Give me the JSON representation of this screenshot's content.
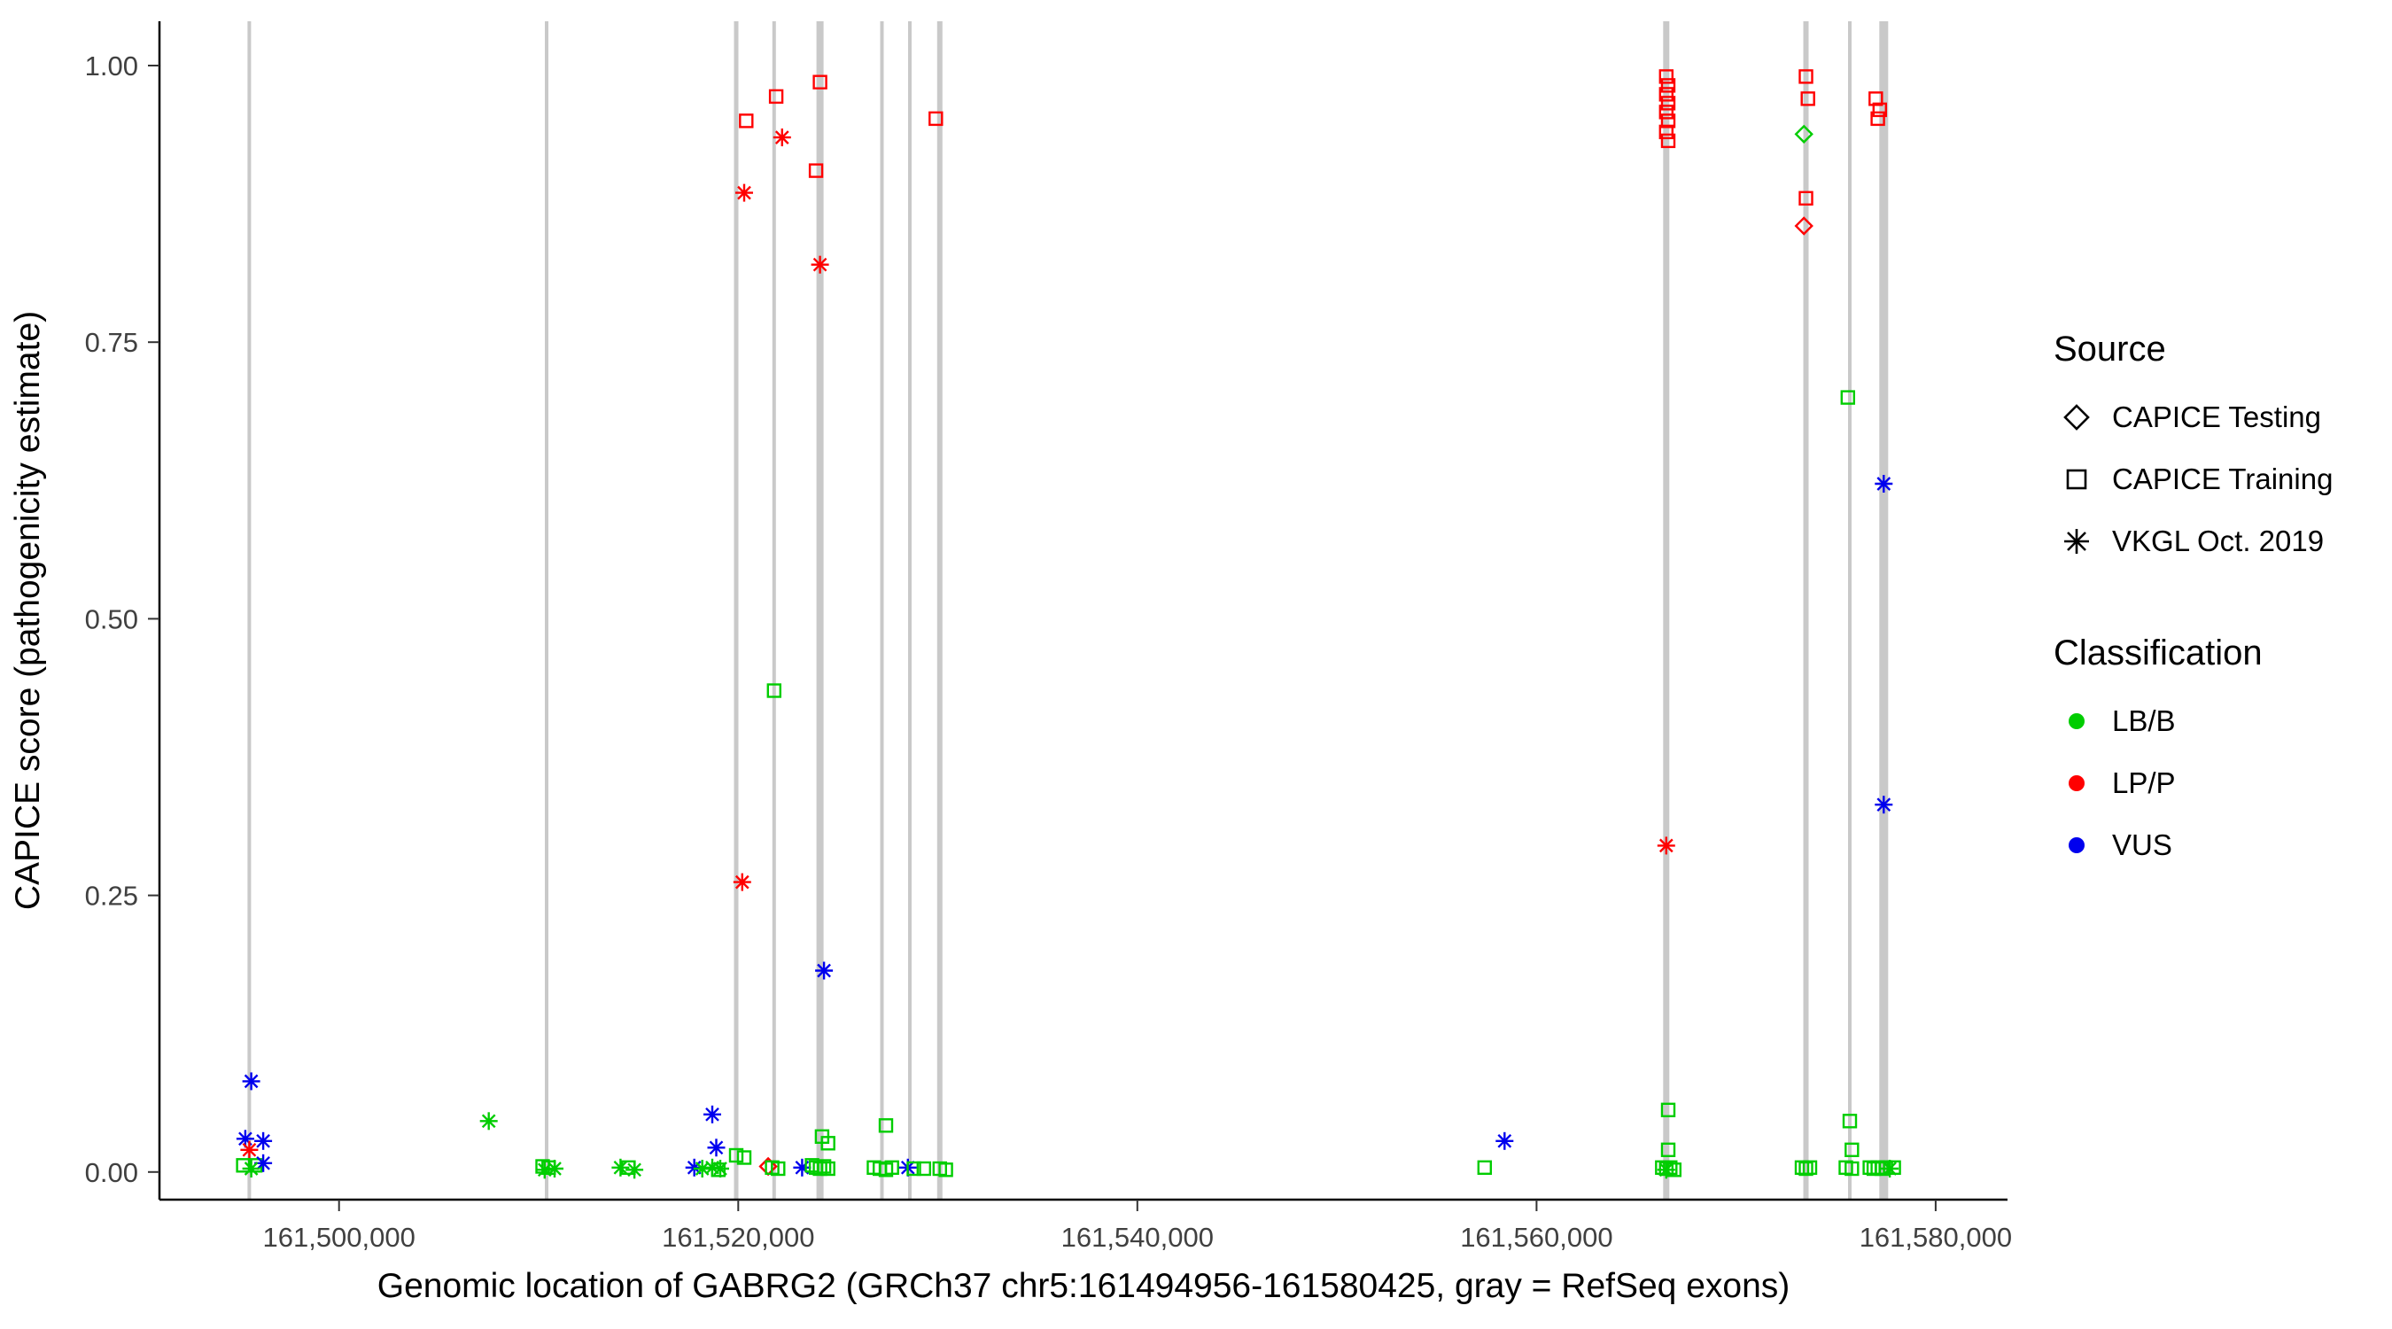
{
  "chart_data": {
    "type": "scatter",
    "title": "",
    "xlabel": "Genomic location of GABRG2 (GRCh37 chr5:161494956-161580425, gray = RefSeq exons)",
    "ylabel": "CAPICE score (pathogenicity estimate)",
    "xlim": [
      161491000,
      161583600
    ],
    "ylim": [
      -0.025,
      1.04
    ],
    "x_ticks": [
      {
        "value": 161500000,
        "label": "161,500,000"
      },
      {
        "value": 161520000,
        "label": "161,520,000"
      },
      {
        "value": 161540000,
        "label": "161,540,000"
      },
      {
        "value": 161560000,
        "label": "161,560,000"
      },
      {
        "value": 161580000,
        "label": "161,580,000"
      }
    ],
    "y_ticks": [
      {
        "value": 0.0,
        "label": "0.00"
      },
      {
        "value": 0.25,
        "label": "0.25"
      },
      {
        "value": 0.5,
        "label": "0.50"
      },
      {
        "value": 0.75,
        "label": "0.75"
      },
      {
        "value": 1.0,
        "label": "1.00"
      }
    ],
    "colors": {
      "LB/B": "#00CD00",
      "LP/P": "#FF0000",
      "VUS": "#0000EE",
      "exon": "#C9C9C9",
      "axis": "#000000"
    },
    "shapes": {
      "CAPICE Testing": "diamond",
      "CAPICE Training": "square",
      "VKGL Oct. 2019": "asterisk"
    },
    "legend": {
      "source": {
        "title": "Source",
        "items": [
          {
            "label": "CAPICE Testing",
            "shape": "diamond"
          },
          {
            "label": "CAPICE Training",
            "shape": "square"
          },
          {
            "label": "VKGL Oct. 2019",
            "shape": "asterisk"
          }
        ]
      },
      "classification": {
        "title": "Classification",
        "items": [
          {
            "label": "LB/B",
            "color": "#00CD00"
          },
          {
            "label": "LP/P",
            "color": "#FF0000"
          },
          {
            "label": "VUS",
            "color": "#0000EE"
          }
        ]
      }
    },
    "exons_note": "gray vertical lines = RefSeq exons",
    "exons": [
      {
        "x": 161495500,
        "w": 4
      },
      {
        "x": 161510400,
        "w": 4
      },
      {
        "x": 161519900,
        "w": 5
      },
      {
        "x": 161521800,
        "w": 4
      },
      {
        "x": 161524100,
        "w": 8
      },
      {
        "x": 161527200,
        "w": 4
      },
      {
        "x": 161528600,
        "w": 4
      },
      {
        "x": 161530100,
        "w": 6
      },
      {
        "x": 161566500,
        "w": 7
      },
      {
        "x": 161573500,
        "w": 6
      },
      {
        "x": 161575700,
        "w": 4
      },
      {
        "x": 161577400,
        "w": 10
      }
    ],
    "points_format": [
      "x_genomic_position",
      "capice_score",
      "source",
      "classification"
    ],
    "points": [
      [
        161495600,
        0.082,
        "VKGL Oct. 2019",
        "VUS"
      ],
      [
        161495300,
        0.03,
        "VKGL Oct. 2019",
        "VUS"
      ],
      [
        161496200,
        0.028,
        "VKGL Oct. 2019",
        "VUS"
      ],
      [
        161495500,
        0.02,
        "VKGL Oct. 2019",
        "LP/P"
      ],
      [
        161495200,
        0.006,
        "CAPICE Training",
        "LB/B"
      ],
      [
        161495800,
        0.006,
        "CAPICE Training",
        "LB/B"
      ],
      [
        161496200,
        0.008,
        "VKGL Oct. 2019",
        "VUS"
      ],
      [
        161495600,
        0.003,
        "VKGL Oct. 2019",
        "LB/B"
      ],
      [
        161507500,
        0.046,
        "VKGL Oct. 2019",
        "LB/B"
      ],
      [
        161510200,
        0.005,
        "CAPICE Training",
        "LB/B"
      ],
      [
        161510500,
        0.004,
        "CAPICE Training",
        "LB/B"
      ],
      [
        161510800,
        0.003,
        "VKGL Oct. 2019",
        "LB/B"
      ],
      [
        161510300,
        0.002,
        "VKGL Oct. 2019",
        "LB/B"
      ],
      [
        161514100,
        0.004,
        "VKGL Oct. 2019",
        "LB/B"
      ],
      [
        161514500,
        0.004,
        "CAPICE Training",
        "LB/B"
      ],
      [
        161514800,
        0.002,
        "VKGL Oct. 2019",
        "LB/B"
      ],
      [
        161518700,
        0.052,
        "VKGL Oct. 2019",
        "VUS"
      ],
      [
        161518900,
        0.022,
        "VKGL Oct. 2019",
        "VUS"
      ],
      [
        161517800,
        0.004,
        "VKGL Oct. 2019",
        "VUS"
      ],
      [
        161518200,
        0.003,
        "VKGL Oct. 2019",
        "LB/B"
      ],
      [
        161518700,
        0.004,
        "VKGL Oct. 2019",
        "LB/B"
      ],
      [
        161519100,
        0.003,
        "VKGL Oct. 2019",
        "LB/B"
      ],
      [
        161519000,
        0.002,
        "CAPICE Training",
        "LB/B"
      ],
      [
        161520400,
        0.95,
        "CAPICE Training",
        "LP/P"
      ],
      [
        161520300,
        0.885,
        "VKGL Oct. 2019",
        "LP/P"
      ],
      [
        161520200,
        0.262,
        "VKGL Oct. 2019",
        "LP/P"
      ],
      [
        161519900,
        0.015,
        "CAPICE Training",
        "LB/B"
      ],
      [
        161520300,
        0.013,
        "CAPICE Training",
        "LB/B"
      ],
      [
        161521900,
        0.972,
        "CAPICE Training",
        "LP/P"
      ],
      [
        161522200,
        0.935,
        "VKGL Oct. 2019",
        "LP/P"
      ],
      [
        161521800,
        0.435,
        "CAPICE Training",
        "LB/B"
      ],
      [
        161521500,
        0.005,
        "CAPICE Testing",
        "LP/P"
      ],
      [
        161521700,
        0.004,
        "CAPICE Training",
        "LB/B"
      ],
      [
        161522000,
        0.003,
        "CAPICE Training",
        "LB/B"
      ],
      [
        161524100,
        0.985,
        "CAPICE Training",
        "LP/P"
      ],
      [
        161523900,
        0.905,
        "CAPICE Training",
        "LP/P"
      ],
      [
        161524100,
        0.82,
        "VKGL Oct. 2019",
        "LP/P"
      ],
      [
        161524300,
        0.182,
        "VKGL Oct. 2019",
        "VUS"
      ],
      [
        161524200,
        0.032,
        "CAPICE Training",
        "LB/B"
      ],
      [
        161524500,
        0.026,
        "CAPICE Training",
        "LB/B"
      ],
      [
        161523200,
        0.004,
        "VKGL Oct. 2019",
        "VUS"
      ],
      [
        161523700,
        0.006,
        "CAPICE Training",
        "LB/B"
      ],
      [
        161523900,
        0.004,
        "CAPICE Training",
        "LB/B"
      ],
      [
        161524100,
        0.003,
        "CAPICE Training",
        "LB/B"
      ],
      [
        161524300,
        0.005,
        "CAPICE Training",
        "LB/B"
      ],
      [
        161524500,
        0.003,
        "CAPICE Training",
        "LB/B"
      ],
      [
        161527400,
        0.042,
        "CAPICE Training",
        "LB/B"
      ],
      [
        161526800,
        0.004,
        "CAPICE Training",
        "LB/B"
      ],
      [
        161527100,
        0.003,
        "CAPICE Training",
        "LB/B"
      ],
      [
        161527400,
        0.002,
        "CAPICE Training",
        "LB/B"
      ],
      [
        161527700,
        0.004,
        "CAPICE Training",
        "LB/B"
      ],
      [
        161528500,
        0.004,
        "VKGL Oct. 2019",
        "VUS"
      ],
      [
        161528800,
        0.003,
        "CAPICE Training",
        "LB/B"
      ],
      [
        161529300,
        0.003,
        "CAPICE Training",
        "LB/B"
      ],
      [
        161529900,
        0.952,
        "CAPICE Training",
        "LP/P"
      ],
      [
        161530100,
        0.003,
        "CAPICE Training",
        "LB/B"
      ],
      [
        161530400,
        0.002,
        "CAPICE Training",
        "LB/B"
      ],
      [
        161557400,
        0.004,
        "CAPICE Training",
        "LB/B"
      ],
      [
        161558400,
        0.028,
        "VKGL Oct. 2019",
        "VUS"
      ],
      [
        161566500,
        0.99,
        "CAPICE Training",
        "LP/P"
      ],
      [
        161566600,
        0.982,
        "CAPICE Training",
        "LP/P"
      ],
      [
        161566500,
        0.974,
        "CAPICE Training",
        "LP/P"
      ],
      [
        161566600,
        0.966,
        "CAPICE Training",
        "LP/P"
      ],
      [
        161566500,
        0.958,
        "CAPICE Training",
        "LP/P"
      ],
      [
        161566600,
        0.95,
        "CAPICE Training",
        "LP/P"
      ],
      [
        161566500,
        0.94,
        "CAPICE Training",
        "LP/P"
      ],
      [
        161566600,
        0.932,
        "CAPICE Training",
        "LP/P"
      ],
      [
        161566500,
        0.295,
        "VKGL Oct. 2019",
        "LP/P"
      ],
      [
        161566600,
        0.056,
        "CAPICE Training",
        "LB/B"
      ],
      [
        161566600,
        0.02,
        "CAPICE Training",
        "LB/B"
      ],
      [
        161566300,
        0.004,
        "CAPICE Training",
        "LB/B"
      ],
      [
        161566500,
        0.003,
        "CAPICE Training",
        "LB/B"
      ],
      [
        161566700,
        0.004,
        "CAPICE Training",
        "LB/B"
      ],
      [
        161566900,
        0.002,
        "CAPICE Training",
        "LB/B"
      ],
      [
        161566500,
        0.002,
        "VKGL Oct. 2019",
        "LB/B"
      ],
      [
        161573500,
        0.99,
        "CAPICE Training",
        "LP/P"
      ],
      [
        161573600,
        0.97,
        "CAPICE Training",
        "LP/P"
      ],
      [
        161573400,
        0.938,
        "CAPICE Testing",
        "LB/B"
      ],
      [
        161573500,
        0.88,
        "CAPICE Training",
        "LP/P"
      ],
      [
        161573400,
        0.855,
        "CAPICE Testing",
        "LP/P"
      ],
      [
        161573300,
        0.004,
        "CAPICE Training",
        "LB/B"
      ],
      [
        161573500,
        0.003,
        "CAPICE Training",
        "LB/B"
      ],
      [
        161573700,
        0.004,
        "CAPICE Training",
        "LB/B"
      ],
      [
        161575600,
        0.7,
        "CAPICE Training",
        "LB/B"
      ],
      [
        161575700,
        0.046,
        "CAPICE Training",
        "LB/B"
      ],
      [
        161575800,
        0.02,
        "CAPICE Training",
        "LB/B"
      ],
      [
        161575500,
        0.004,
        "CAPICE Training",
        "LB/B"
      ],
      [
        161575800,
        0.003,
        "CAPICE Training",
        "LB/B"
      ],
      [
        161577000,
        0.97,
        "CAPICE Training",
        "LP/P"
      ],
      [
        161577200,
        0.96,
        "CAPICE Training",
        "LP/P"
      ],
      [
        161577100,
        0.952,
        "CAPICE Training",
        "LP/P"
      ],
      [
        161577400,
        0.622,
        "VKGL Oct. 2019",
        "VUS"
      ],
      [
        161577400,
        0.332,
        "VKGL Oct. 2019",
        "VUS"
      ],
      [
        161576700,
        0.004,
        "CAPICE Training",
        "LB/B"
      ],
      [
        161576900,
        0.003,
        "CAPICE Training",
        "LB/B"
      ],
      [
        161577100,
        0.004,
        "CAPICE Training",
        "LB/B"
      ],
      [
        161577300,
        0.003,
        "CAPICE Training",
        "LB/B"
      ],
      [
        161577500,
        0.004,
        "CAPICE Training",
        "LB/B"
      ],
      [
        161577700,
        0.003,
        "VKGL Oct. 2019",
        "LB/B"
      ],
      [
        161577900,
        0.004,
        "CAPICE Training",
        "LB/B"
      ]
    ]
  }
}
